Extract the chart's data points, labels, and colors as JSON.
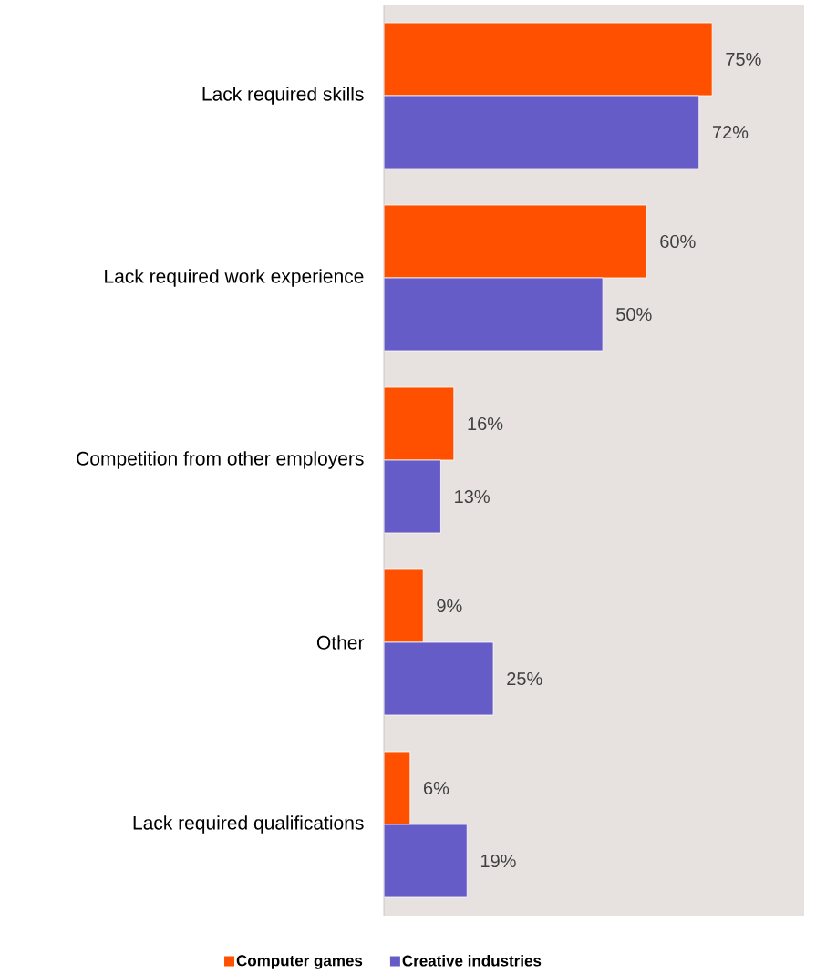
{
  "chart_data": {
    "type": "bar",
    "orientation": "horizontal",
    "categories": [
      "Lack required skills",
      "Lack required work experience",
      "Competition from other employers",
      "Other",
      "Lack required qualifications"
    ],
    "series": [
      {
        "name": "Computer games",
        "color": "#ff5000",
        "values": [
          75,
          60,
          16,
          9,
          6
        ],
        "value_labels": [
          "75%",
          "60%",
          "16%",
          "9%",
          "6%"
        ]
      },
      {
        "name": "Creative industries",
        "color": "#665cc7",
        "values": [
          72,
          50,
          13,
          25,
          19
        ],
        "value_labels": [
          "72%",
          "50%",
          "13%",
          "25%",
          "19%"
        ]
      }
    ],
    "xlim": [
      0,
      96
    ],
    "legend": "bottom"
  }
}
